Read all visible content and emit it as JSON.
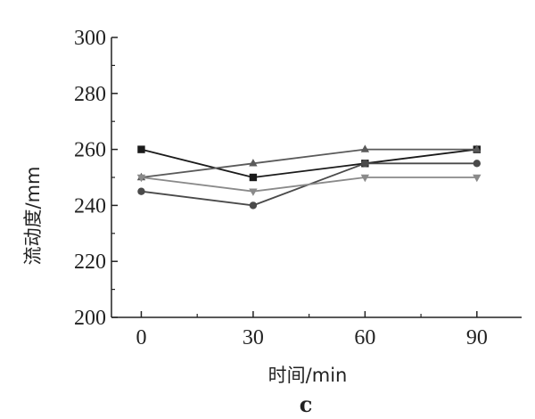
{
  "chart_data": {
    "type": "line",
    "xlabel": "时间/min",
    "ylabel": "流动度/mm",
    "panel_label": "c",
    "x": [
      0,
      30,
      60,
      90
    ],
    "xlim": [
      -8,
      102
    ],
    "ylim": [
      200,
      300
    ],
    "xticks": [
      "0",
      "30",
      "60",
      "90"
    ],
    "yticks": [
      "200",
      "220",
      "240",
      "260",
      "280",
      "300"
    ],
    "grid": false,
    "legend": "none",
    "series": [
      {
        "values": [
          260,
          250,
          255,
          260
        ],
        "marker": "square",
        "color": "#1a1a1a"
      },
      {
        "values": [
          250,
          255,
          260,
          260
        ],
        "marker": "triangle-up",
        "color": "#5a5a5a"
      },
      {
        "values": [
          245,
          240,
          255,
          255
        ],
        "marker": "circle",
        "color": "#4a4a4a"
      },
      {
        "values": [
          250,
          245,
          250,
          250
        ],
        "marker": "triangle-down",
        "color": "#8a8a8a"
      }
    ]
  }
}
